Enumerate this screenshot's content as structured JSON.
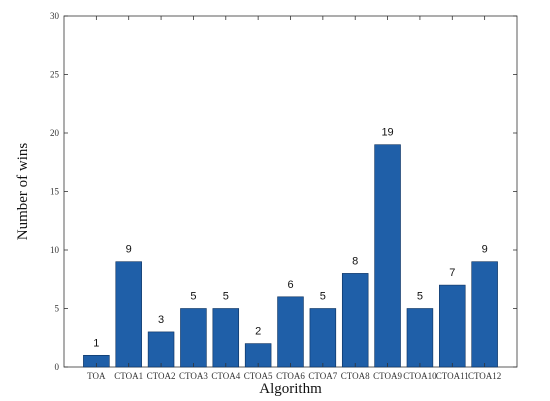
{
  "chart_data": {
    "type": "bar",
    "categories": [
      "TOA",
      "CTOA1",
      "CTOA2",
      "CTOA3",
      "CTOA4",
      "CTOA5",
      "CTOA6",
      "CTOA7",
      "CTOA8",
      "CTOA9",
      "CTOA10",
      "CTOA11",
      "CTOA12"
    ],
    "values": [
      1,
      9,
      3,
      5,
      5,
      2,
      6,
      5,
      8,
      19,
      5,
      7,
      9
    ],
    "data_labels": [
      "1",
      "9",
      "3",
      "5",
      "5",
      "2",
      "6",
      "5",
      "8",
      "19",
      "5",
      "7",
      "9"
    ],
    "title": "",
    "xlabel": "Algorithm",
    "ylabel": "Number of wins",
    "ylim": [
      0,
      30
    ],
    "yticks": [
      0,
      5,
      10,
      15,
      20,
      25,
      30
    ],
    "bar_color": "#1f5fa8",
    "bar_edge_color": "#0b2f5c",
    "grid": false,
    "legend": "none"
  }
}
